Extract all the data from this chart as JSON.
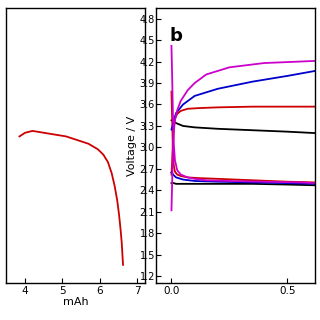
{
  "panel_a": {
    "xlim": [
      3.5,
      7.2
    ],
    "ylim": [
      1.5,
      3.0
    ],
    "xlabel": "mAh",
    "xticks": [
      4,
      5,
      6,
      7
    ],
    "curve_color": "#cc0000",
    "curve_x": [
      3.85,
      4.0,
      4.2,
      4.5,
      4.8,
      5.1,
      5.4,
      5.7,
      5.95,
      6.1,
      6.22,
      6.32,
      6.4,
      6.47,
      6.52,
      6.56,
      6.59,
      6.61,
      6.625
    ],
    "curve_y": [
      2.3,
      2.32,
      2.33,
      2.32,
      2.31,
      2.3,
      2.28,
      2.26,
      2.23,
      2.2,
      2.16,
      2.1,
      2.03,
      1.95,
      1.87,
      1.79,
      1.72,
      1.65,
      1.6
    ]
  },
  "panel_b": {
    "xlim": [
      -0.065,
      0.62
    ],
    "ylim": [
      1.1,
      4.95
    ],
    "ylabel": "Voltage / V",
    "xticks": [
      0.0,
      0.5
    ],
    "yticks": [
      1.2,
      1.5,
      1.8,
      2.1,
      2.4,
      2.7,
      3.0,
      3.3,
      3.6,
      3.9,
      4.2,
      4.5,
      4.8
    ],
    "label_b": "b",
    "curves": [
      {
        "color": "#000000",
        "x": [
          0.0,
          0.005,
          0.01,
          0.02,
          0.05,
          0.1,
          0.2,
          0.35,
          0.5,
          0.62
        ],
        "y": [
          2.5,
          2.5,
          2.5,
          2.49,
          2.49,
          2.49,
          2.49,
          2.49,
          2.48,
          2.47
        ]
      },
      {
        "color": "#000000",
        "x": [
          0.0,
          0.005,
          0.01,
          0.02,
          0.05,
          0.1,
          0.2,
          0.35,
          0.5,
          0.62
        ],
        "y": [
          3.38,
          3.37,
          3.36,
          3.34,
          3.3,
          3.28,
          3.26,
          3.24,
          3.22,
          3.2
        ]
      },
      {
        "color": "#cc0000",
        "x": [
          0.0,
          0.003,
          0.006,
          0.01,
          0.015,
          0.025,
          0.04,
          0.07,
          0.12,
          0.2,
          0.35,
          0.5,
          0.62
        ],
        "y": [
          3.78,
          3.4,
          3.0,
          2.75,
          2.66,
          2.62,
          2.6,
          2.58,
          2.57,
          2.56,
          2.54,
          2.52,
          2.51
        ]
      },
      {
        "color": "#cc0000",
        "x": [
          0.0,
          0.003,
          0.006,
          0.01,
          0.015,
          0.025,
          0.04,
          0.07,
          0.12,
          0.2,
          0.35,
          0.5,
          0.62
        ],
        "y": [
          2.62,
          2.8,
          3.05,
          3.28,
          3.4,
          3.47,
          3.51,
          3.54,
          3.55,
          3.56,
          3.57,
          3.57,
          3.57
        ]
      },
      {
        "color": "#0000cc",
        "x": [
          0.0,
          0.005,
          0.01,
          0.02,
          0.05,
          0.1,
          0.2,
          0.35,
          0.5,
          0.62
        ],
        "y": [
          2.65,
          2.63,
          2.61,
          2.58,
          2.55,
          2.53,
          2.52,
          2.51,
          2.5,
          2.49
        ]
      },
      {
        "color": "#0000cc",
        "x": [
          0.0,
          0.005,
          0.01,
          0.02,
          0.05,
          0.1,
          0.2,
          0.35,
          0.5,
          0.62
        ],
        "y": [
          3.25,
          3.3,
          3.38,
          3.48,
          3.6,
          3.72,
          3.82,
          3.92,
          4.0,
          4.07
        ]
      },
      {
        "color": "#cc00cc",
        "x": [
          0.0,
          0.003,
          0.006,
          0.01,
          0.015,
          0.025,
          0.04,
          0.07,
          0.1,
          0.15,
          0.25,
          0.4,
          0.55,
          0.62
        ],
        "y": [
          4.42,
          4.0,
          3.5,
          3.05,
          2.82,
          2.68,
          2.62,
          2.58,
          2.56,
          2.54,
          2.53,
          2.52,
          2.51,
          2.5
        ]
      },
      {
        "color": "#cc00cc",
        "x": [
          0.0,
          0.003,
          0.006,
          0.01,
          0.015,
          0.025,
          0.04,
          0.07,
          0.1,
          0.15,
          0.25,
          0.4,
          0.55,
          0.62
        ],
        "y": [
          2.12,
          2.5,
          2.95,
          3.22,
          3.38,
          3.52,
          3.65,
          3.8,
          3.9,
          4.02,
          4.12,
          4.18,
          4.2,
          4.21
        ]
      }
    ]
  },
  "bg_color": "#ffffff",
  "spine_color": "#000000",
  "tick_color": "#000000"
}
